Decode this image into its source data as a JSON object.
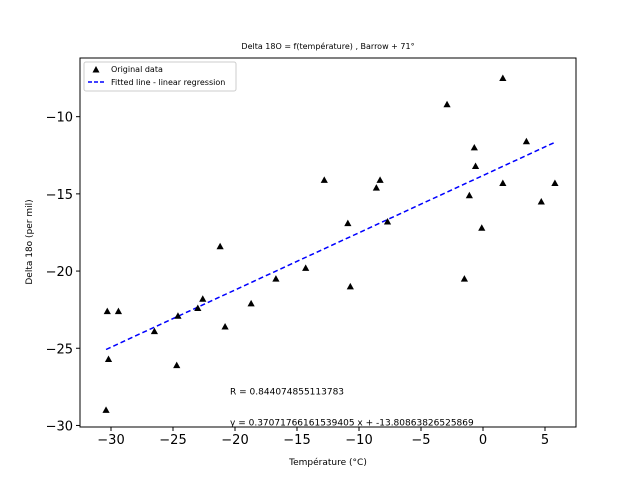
{
  "chart_data": {
    "type": "scatter",
    "title": "Delta 18O = f(température) , Barrow + 71°",
    "xlabel": "Température (°C)",
    "ylabel": "Delta 18o (per mil)",
    "xlim": [
      -32.5,
      7.5
    ],
    "ylim": [
      -30.1,
      -6.2
    ],
    "xticks": [
      -30,
      -25,
      -20,
      -15,
      -10,
      -5,
      0,
      5
    ],
    "yticks": [
      -30,
      -25,
      -20,
      -15,
      -10
    ],
    "xtick_labels": [
      "−30",
      "−25",
      "−20",
      "−15",
      "−10",
      "−5",
      "0",
      "5"
    ],
    "ytick_labels": [
      "−30",
      "−25",
      "−20",
      "−15",
      "−10"
    ],
    "grid": false,
    "legend_position": "top-left",
    "series": [
      {
        "name": "Original data",
        "kind": "scatter",
        "marker": "triangle",
        "color": "#000000",
        "points": [
          [
            -30.4,
            -29.0
          ],
          [
            -30.3,
            -22.6
          ],
          [
            -30.2,
            -25.7
          ],
          [
            -29.4,
            -22.6
          ],
          [
            -26.5,
            -23.9
          ],
          [
            -24.7,
            -26.1
          ],
          [
            -24.6,
            -22.9
          ],
          [
            -23.0,
            -22.4
          ],
          [
            -22.6,
            -21.8
          ],
          [
            -21.2,
            -18.4
          ],
          [
            -20.8,
            -23.6
          ],
          [
            -18.7,
            -22.1
          ],
          [
            -16.7,
            -20.5
          ],
          [
            -14.3,
            -19.8
          ],
          [
            -12.8,
            -14.1
          ],
          [
            -10.9,
            -16.9
          ],
          [
            -10.7,
            -21.0
          ],
          [
            -8.6,
            -14.6
          ],
          [
            -8.3,
            -14.1
          ],
          [
            -7.7,
            -16.8
          ],
          [
            -2.9,
            -9.2
          ],
          [
            -1.5,
            -20.5
          ],
          [
            -1.1,
            -15.1
          ],
          [
            -0.7,
            -12.0
          ],
          [
            -0.6,
            -13.2
          ],
          [
            -0.1,
            -17.2
          ],
          [
            1.6,
            -7.5
          ],
          [
            1.6,
            -14.3
          ],
          [
            3.5,
            -11.6
          ],
          [
            4.7,
            -15.5
          ],
          [
            5.8,
            -14.3
          ]
        ]
      },
      {
        "name": "Fitted line - linear regression",
        "kind": "line",
        "style": "dashed",
        "color": "#0000ff",
        "points": [
          [
            -30.4,
            -25.08
          ],
          [
            5.8,
            -11.66
          ]
        ]
      }
    ],
    "annotations": [
      {
        "text": "R = 0.844074855113783",
        "x": -20.4,
        "y": -28.0
      },
      {
        "text": "y = 0.37071766161539405 x + -13.80863826525869",
        "x": -20.4,
        "y": -30.0
      }
    ]
  }
}
